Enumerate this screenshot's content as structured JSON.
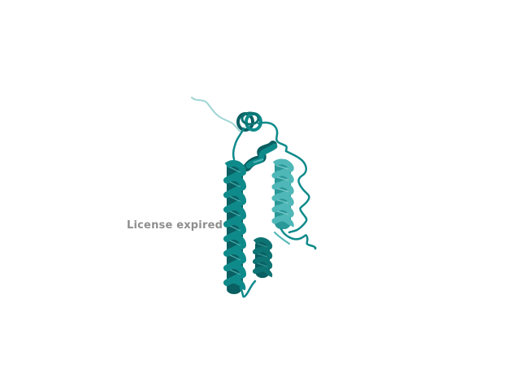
{
  "viewer": {
    "background": "#ffffff",
    "watermark_text": "License expired",
    "watermark_color": "#8e8e8e"
  },
  "structure": {
    "representation": "cartoon",
    "colors": {
      "main": "#0f8a8a",
      "dark": "#0a5f62",
      "light": "#4fb7b7",
      "faint": "#9fd4d4"
    }
  }
}
